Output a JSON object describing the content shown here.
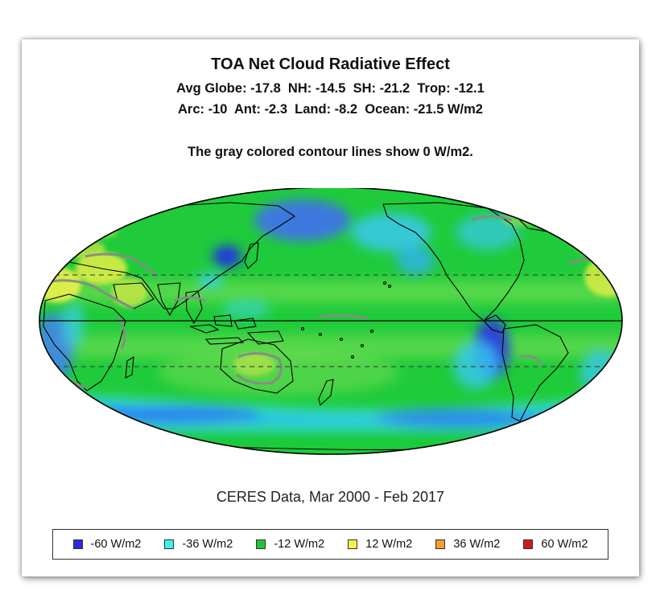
{
  "map": {
    "title": "TOA Net Cloud Radiative Effect",
    "stats_line1": "Avg Globe: -17.8  NH: -14.5  SH: -21.2  Trop: -12.1",
    "stats_line2": "Arc: -10  Ant: -2.3  Land: -8.2  Ocean: -21.5 W/m2",
    "note": "The gray colored contour lines show 0 W/m2.",
    "source": "CERES Data, Mar 2000 - Feb 2017",
    "projection": "mollweide",
    "center": "Pacific",
    "contour_color": "#8a8a8a",
    "base_color": "#1fcb3a"
  },
  "legend": [
    {
      "label": "-60 W/m2",
      "color": "#2a2ae0"
    },
    {
      "label": "-36 W/m2",
      "color": "#3ef0f0"
    },
    {
      "label": "-12 W/m2",
      "color": "#22c33a"
    },
    {
      "label": "12 W/m2",
      "color": "#f2f24a"
    },
    {
      "label": "36 W/m2",
      "color": "#f0a030"
    },
    {
      "label": "60 W/m2",
      "color": "#d01818"
    }
  ]
}
